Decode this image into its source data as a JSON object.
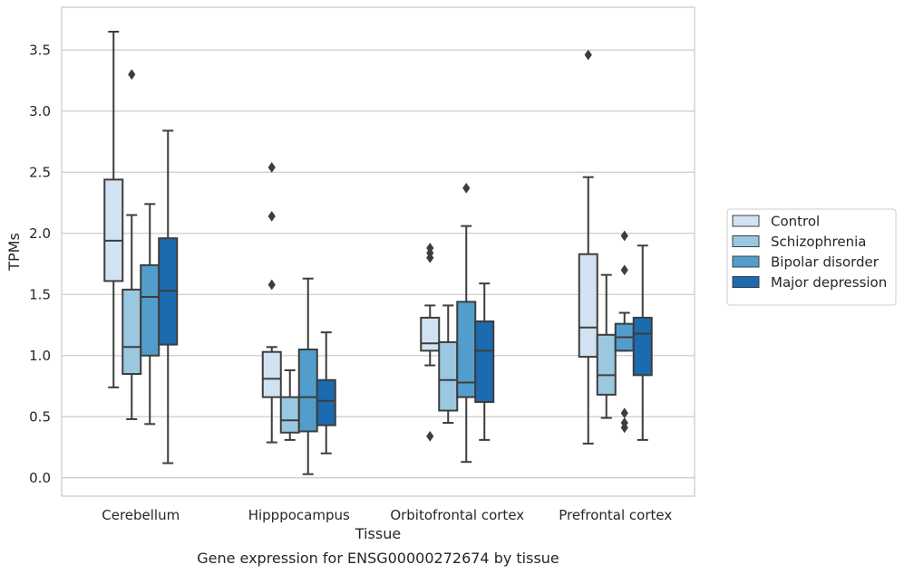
{
  "chart_data": {
    "type": "box",
    "caption": "Gene expression for ENSG00000272674 by tissue",
    "xlabel": "Tissue",
    "ylabel": "TPMs",
    "ylim": [
      -0.15,
      3.85
    ],
    "yticks": [
      0.0,
      0.5,
      1.0,
      1.5,
      2.0,
      2.5,
      3.0,
      3.5
    ],
    "grid": "horizontal",
    "legend_position": "right",
    "categories": [
      "Cerebellum",
      "Hipppocampus",
      "Orbitofrontal cortex",
      "Prefrontal cortex"
    ],
    "series": [
      {
        "name": "Control",
        "color": "#d1e2f2",
        "boxes": [
          {
            "whislo": 0.74,
            "q1": 1.61,
            "med": 1.94,
            "q3": 2.44,
            "whishi": 3.65,
            "fliers": []
          },
          {
            "whislo": 0.29,
            "q1": 0.66,
            "med": 0.81,
            "q3": 1.03,
            "whishi": 1.07,
            "fliers": [
              1.58,
              2.14,
              2.54
            ]
          },
          {
            "whislo": 0.92,
            "q1": 1.04,
            "med": 1.1,
            "q3": 1.31,
            "whishi": 1.41,
            "fliers": [
              0.34,
              1.8,
              1.84,
              1.88
            ]
          },
          {
            "whislo": 0.28,
            "q1": 0.99,
            "med": 1.23,
            "q3": 1.83,
            "whishi": 2.46,
            "fliers": [
              3.46
            ]
          }
        ]
      },
      {
        "name": "Schizophrenia",
        "color": "#9ac8e0",
        "boxes": [
          {
            "whislo": 0.48,
            "q1": 0.85,
            "med": 1.07,
            "q3": 1.54,
            "whishi": 2.15,
            "fliers": [
              3.3
            ]
          },
          {
            "whislo": 0.31,
            "q1": 0.37,
            "med": 0.47,
            "q3": 0.66,
            "whishi": 0.88,
            "fliers": []
          },
          {
            "whislo": 0.45,
            "q1": 0.55,
            "med": 0.8,
            "q3": 1.11,
            "whishi": 1.41,
            "fliers": []
          },
          {
            "whislo": 0.49,
            "q1": 0.68,
            "med": 0.84,
            "q3": 1.17,
            "whishi": 1.66,
            "fliers": []
          }
        ]
      },
      {
        "name": "Bipolar disorder",
        "color": "#529dcc",
        "boxes": [
          {
            "whislo": 0.44,
            "q1": 1.0,
            "med": 1.48,
            "q3": 1.74,
            "whishi": 2.24,
            "fliers": []
          },
          {
            "whislo": 0.03,
            "q1": 0.38,
            "med": 0.66,
            "q3": 1.05,
            "whishi": 1.63,
            "fliers": []
          },
          {
            "whislo": 0.13,
            "q1": 0.66,
            "med": 0.78,
            "q3": 1.44,
            "whishi": 2.06,
            "fliers": [
              2.37
            ]
          },
          {
            "whislo": 1.04,
            "q1": 1.04,
            "med": 1.15,
            "q3": 1.26,
            "whishi": 1.35,
            "fliers": [
              0.41,
              0.45,
              0.53,
              1.7,
              1.98
            ]
          }
        ]
      },
      {
        "name": "Major depression",
        "color": "#1c6aaf",
        "boxes": [
          {
            "whislo": 0.12,
            "q1": 1.09,
            "med": 1.53,
            "q3": 1.96,
            "whishi": 2.84,
            "fliers": []
          },
          {
            "whislo": 0.2,
            "q1": 0.43,
            "med": 0.63,
            "q3": 0.8,
            "whishi": 1.19,
            "fliers": []
          },
          {
            "whislo": 0.31,
            "q1": 0.62,
            "med": 1.04,
            "q3": 1.28,
            "whishi": 1.59,
            "fliers": []
          },
          {
            "whislo": 0.31,
            "q1": 0.84,
            "med": 1.18,
            "q3": 1.31,
            "whishi": 1.9,
            "fliers": []
          }
        ]
      }
    ]
  }
}
